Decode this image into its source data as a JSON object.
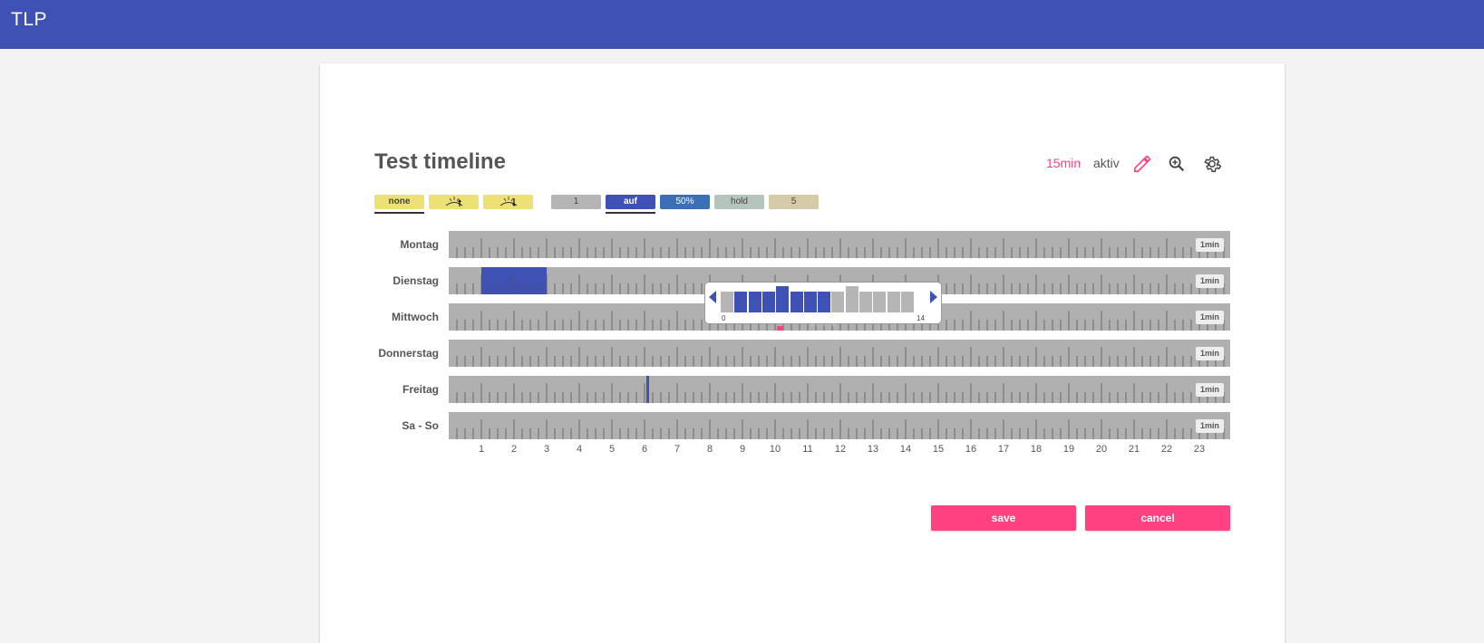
{
  "app": {
    "title": "TLP"
  },
  "timeline": {
    "title": "Test timeline",
    "interval": "15min",
    "status": "aktiv",
    "icons": [
      "pencil-icon",
      "zoom-in-icon",
      "gear-icon"
    ]
  },
  "modes": [
    {
      "id": "none",
      "label": "none",
      "type": "text",
      "color": "#ede175",
      "selected": true
    },
    {
      "id": "sunrise",
      "label": "",
      "type": "sunrise-icon",
      "color": "#ede175",
      "selected": false
    },
    {
      "id": "sunset",
      "label": "",
      "type": "sunset-icon",
      "color": "#ede175",
      "selected": false
    }
  ],
  "actions": [
    {
      "id": "one",
      "label": "1",
      "color": "#b5b5b5",
      "text_color": "#444",
      "selected": false
    },
    {
      "id": "auf",
      "label": "auf",
      "color": "#3f51b5",
      "text_color": "#ffffff",
      "selected": true
    },
    {
      "id": "fifty",
      "label": "50%",
      "color": "#3b6fb6",
      "text_color": "#ffffff",
      "selected": false
    },
    {
      "id": "hold",
      "label": "hold",
      "color": "#b5c4bd",
      "text_color": "#444",
      "selected": false
    },
    {
      "id": "five",
      "label": "5",
      "color": "#d5cba8",
      "text_color": "#444",
      "selected": false
    }
  ],
  "days": [
    {
      "label": "Montag",
      "resolution": "1min",
      "blocks": []
    },
    {
      "label": "Dienstag",
      "resolution": "1min",
      "blocks": [
        {
          "start_hour": 1.0,
          "end_hour": 3.0,
          "color": "#3f51b5"
        }
      ]
    },
    {
      "label": "Mittwoch",
      "resolution": "1min",
      "blocks": [],
      "marker_hour": 10.0
    },
    {
      "label": "Donnerstag",
      "resolution": "1min",
      "blocks": []
    },
    {
      "label": "Freitag",
      "resolution": "1min",
      "blocks": [
        {
          "start_hour": 6.05,
          "end_hour": 6.15,
          "color": "#3f51b5"
        }
      ]
    },
    {
      "label": "Sa - So",
      "resolution": "1min",
      "blocks": []
    }
  ],
  "hours": [
    "1",
    "2",
    "3",
    "4",
    "5",
    "6",
    "7",
    "8",
    "9",
    "10",
    "11",
    "12",
    "13",
    "14",
    "15",
    "16",
    "17",
    "18",
    "19",
    "20",
    "21",
    "22",
    "23"
  ],
  "detail_popup": {
    "range_start": "0",
    "range_end": "14",
    "bars": [
      {
        "level": 0.75,
        "color": "#b5b5b5"
      },
      {
        "level": 0.75,
        "color": "#3f51b5"
      },
      {
        "level": 0.75,
        "color": "#3f51b5"
      },
      {
        "level": 0.75,
        "color": "#3f51b5"
      },
      {
        "level": 0.95,
        "color": "#3f51b5"
      },
      {
        "level": 0.75,
        "color": "#3f51b5"
      },
      {
        "level": 0.75,
        "color": "#3f51b5"
      },
      {
        "level": 0.75,
        "color": "#3f51b5"
      },
      {
        "level": 0.75,
        "color": "#b5b5b5"
      },
      {
        "level": 0.95,
        "color": "#b5b5b5"
      },
      {
        "level": 0.75,
        "color": "#b5b5b5"
      },
      {
        "level": 0.75,
        "color": "#b5b5b5"
      },
      {
        "level": 0.75,
        "color": "#b5b5b5"
      },
      {
        "level": 0.75,
        "color": "#b5b5b5"
      }
    ]
  },
  "buttons": {
    "save": "save",
    "cancel": "cancel"
  },
  "colors": {
    "primary": "#3f51b5",
    "accent": "#ff4081",
    "track": "#b0b0b0"
  }
}
